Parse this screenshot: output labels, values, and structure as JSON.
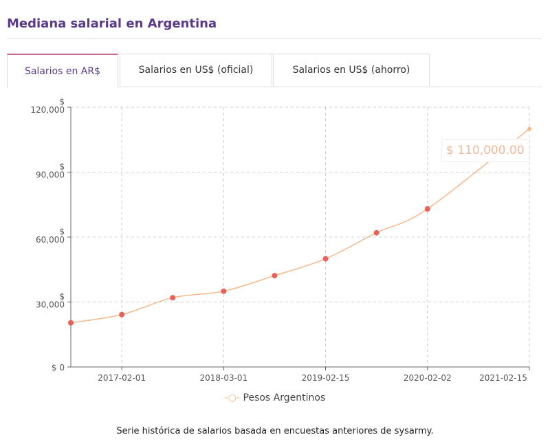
{
  "title": "Mediana salarial en Argentina",
  "tabs": [
    {
      "label": "Salarios en AR$",
      "active": true
    },
    {
      "label": "Salarios en US$ (oficial)"
    },
    {
      "label": "Salarios en US$ (ahorro)"
    }
  ],
  "caption": "Serie histórica de salarios basada en encuestas anteriores de sysarmy.",
  "tooltip": "$ 110,000.00",
  "chart_data": {
    "type": "line",
    "series": [
      {
        "name": "Pesos Argentinos",
        "color": "#f5b98c",
        "marker_color": "#e8625a",
        "points": [
          {
            "t": 0,
            "y": 20400
          },
          {
            "t": 1,
            "y": 24200
          },
          {
            "t": 2,
            "y": 32000
          },
          {
            "t": 3,
            "y": 35000
          },
          {
            "t": 4,
            "y": 42200
          },
          {
            "t": 5,
            "y": 50000
          },
          {
            "t": 6,
            "y": 62000
          },
          {
            "t": 7,
            "y": 73000
          },
          {
            "t": 9,
            "y": 110000
          }
        ]
      }
    ],
    "xlim": [
      0,
      9
    ],
    "xticks": [
      {
        "t": 1,
        "label": "2017-02-01"
      },
      {
        "t": 3,
        "label": "2018-03-01"
      },
      {
        "t": 5,
        "label": "2019-02-15"
      },
      {
        "t": 7,
        "label": "2020-02-02"
      },
      {
        "t": 9,
        "label": "2021-02-15"
      }
    ],
    "ylim": [
      0,
      120000
    ],
    "yticks": [
      {
        "v": 0,
        "label": "$ 0"
      },
      {
        "v": 30000,
        "label": "30,000"
      },
      {
        "v": 60000,
        "label": "60,000"
      },
      {
        "v": 90000,
        "label": "90,000"
      },
      {
        "v": 120000,
        "label": "120,000"
      }
    ],
    "ytick_prefix": "$",
    "legend": "Pesos Argentinos",
    "legend_position": "bottom",
    "grid": true
  }
}
